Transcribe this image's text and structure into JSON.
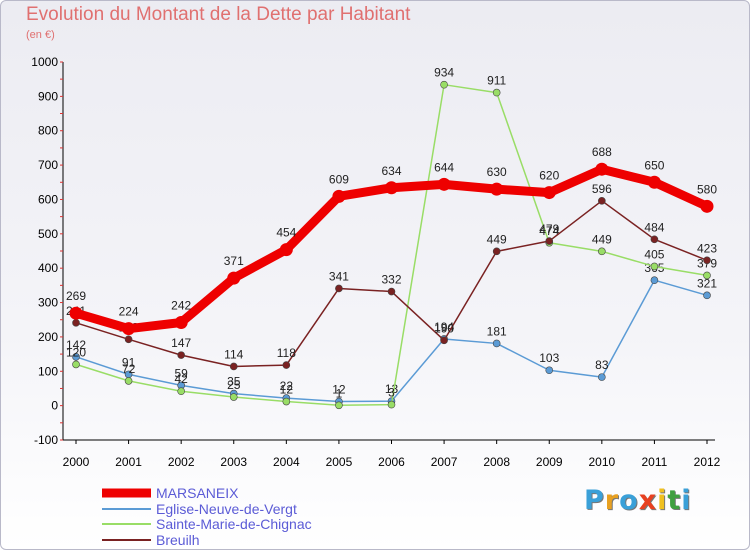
{
  "header": {
    "title": "Evolution du Montant de la Dette par Habitant",
    "unit": "(en €)"
  },
  "logo": {
    "letters": [
      "P",
      "r",
      "o",
      "x",
      "i",
      "t",
      "i"
    ],
    "colors": [
      "#3aa0d8",
      "#e8a020",
      "#3aa0d8",
      "#e84020",
      "#f0c020",
      "#40a040",
      "#3aa0d8"
    ]
  },
  "chart_data": {
    "type": "line",
    "title": "Evolution du Montant de la Dette par Habitant",
    "subtitle": "(en €)",
    "xlabel": "",
    "ylabel": "",
    "x": [
      "2000",
      "2001",
      "2002",
      "2003",
      "2004",
      "2005",
      "2006",
      "2007",
      "2008",
      "2009",
      "2010",
      "2011",
      "2012"
    ],
    "yticks": [
      -100,
      0,
      100,
      200,
      300,
      400,
      500,
      600,
      700,
      800,
      900,
      1000
    ],
    "ylim": [
      -100,
      1000
    ],
    "grid": false,
    "legend_position": "bottom-left",
    "series": [
      {
        "name": "MARSANEIX",
        "color": "#ee0000",
        "bold": true,
        "values": [
          269,
          224,
          242,
          371,
          454,
          609,
          634,
          644,
          630,
          620,
          688,
          650,
          580
        ],
        "labels": [
          "269",
          "224",
          "242",
          "371",
          "454",
          "609",
          "634",
          "644",
          "630",
          "620",
          "688",
          "650",
          "580"
        ]
      },
      {
        "name": "Eglise-Neuve-de-Vergt",
        "color": "#5b9bd5",
        "bold": false,
        "values": [
          142,
          91,
          59,
          35,
          22,
          12,
          13,
          194,
          181,
          103,
          83,
          365,
          321
        ],
        "labels": [
          "142",
          "91",
          "59",
          "35",
          "22",
          "12",
          "13",
          "194",
          "181",
          "103",
          "83",
          "365",
          "321"
        ]
      },
      {
        "name": "Sainte-Marie-de-Chignac",
        "color": "#99dd66",
        "bold": false,
        "values": [
          120,
          72,
          42,
          25,
          12,
          1,
          3,
          934,
          911,
          474,
          449,
          405,
          379
        ],
        "labels": [
          "120",
          "72",
          "42",
          "25",
          "12",
          "1",
          "3",
          "934",
          "911",
          "474",
          "449",
          "405",
          "379"
        ]
      },
      {
        "name": "Breuilh",
        "color": "#7a2222",
        "bold": false,
        "values": [
          241,
          193,
          147,
          114,
          118,
          341,
          332,
          190,
          449,
          479,
          596,
          484,
          423
        ],
        "labels": [
          "241",
          "193",
          "147",
          "114",
          "118",
          "341",
          "332",
          "190",
          "449",
          "479",
          "596",
          "484",
          "423"
        ]
      }
    ]
  }
}
